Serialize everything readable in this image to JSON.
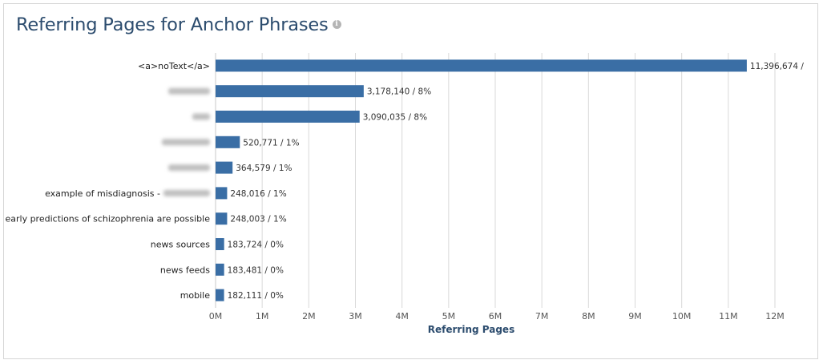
{
  "header": {
    "title": "Referring Pages for Anchor Phrases",
    "info_icon": "info-icon"
  },
  "chart_data": {
    "type": "bar",
    "orientation": "horizontal",
    "xlabel": "Referring Pages",
    "xlim": [
      0,
      12000000
    ],
    "x_ticks": [
      "0M",
      "1M",
      "2M",
      "3M",
      "4M",
      "5M",
      "6M",
      "7M",
      "8M",
      "9M",
      "10M",
      "11M",
      "12M"
    ],
    "grid": true,
    "bar_color": "#3a6ea5",
    "categories": [
      {
        "label": "<a>noText</a>",
        "blurred": false
      },
      {
        "label": "",
        "blurred": true
      },
      {
        "label": "",
        "blurred": true
      },
      {
        "label": "",
        "blurred": true
      },
      {
        "label": "",
        "blurred": true
      },
      {
        "label": "example of misdiagnosis -",
        "blurred": true
      },
      {
        "label": "early predictions of schizophrenia are possible",
        "blurred": false
      },
      {
        "label": "news sources",
        "blurred": false
      },
      {
        "label": "news feeds",
        "blurred": false
      },
      {
        "label": "mobile",
        "blurred": false
      }
    ],
    "values": [
      11396674,
      3178140,
      3090035,
      520771,
      364579,
      248016,
      248003,
      183724,
      183481,
      182111
    ],
    "data_labels": [
      "11,396,674 /",
      "3,178,140 / 8%",
      "3,090,035 / 8%",
      "520,771 / 1%",
      "364,579 / 1%",
      "248,016 / 1%",
      "248,003 / 1%",
      "183,724 / 0%",
      "183,481 / 0%",
      "182,111 / 0%"
    ]
  }
}
